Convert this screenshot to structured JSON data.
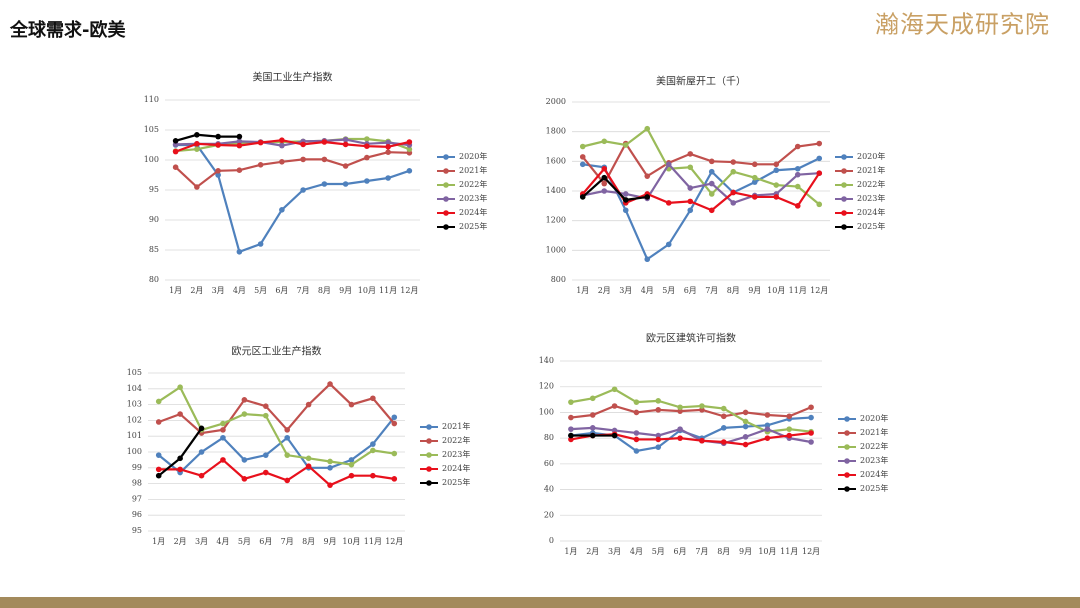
{
  "header": {
    "title": "全球需求-欧美",
    "logo": "瀚海天成研究院"
  },
  "chart_data": [
    {
      "type": "line",
      "title": "美国工业生产指数",
      "categories": [
        "1月",
        "2月",
        "3月",
        "4月",
        "5月",
        "6月",
        "7月",
        "8月",
        "9月",
        "10月",
        "11月",
        "12月"
      ],
      "ylim": [
        80,
        110
      ],
      "yticks": [
        80,
        85,
        90,
        95,
        100,
        105,
        110
      ],
      "grid": true,
      "legend": "right",
      "series": [
        {
          "name": "2020年",
          "color": "#4f81bd",
          "values": [
            102.5,
            102.5,
            97.5,
            84.7,
            86,
            91.7,
            95,
            96,
            96,
            96.5,
            97,
            98.2
          ]
        },
        {
          "name": "2021年",
          "color": "#c0504d",
          "values": [
            98.8,
            95.5,
            98.2,
            98.3,
            99.2,
            99.7,
            100.1,
            100.1,
            99,
            100.4,
            101.3,
            101.2
          ]
        },
        {
          "name": "2022年",
          "color": "#9bbb59",
          "values": [
            101.5,
            101.8,
            102.5,
            102.8,
            103,
            103,
            103.1,
            103.2,
            103.5,
            103.5,
            103.1,
            101.8
          ]
        },
        {
          "name": "2023年",
          "color": "#8064a2",
          "values": [
            102.6,
            102.7,
            102.7,
            103.1,
            103,
            102.4,
            103.1,
            103.2,
            103.4,
            102.7,
            102.9,
            102.5
          ]
        },
        {
          "name": "2024年",
          "color": "#e8101c",
          "values": [
            101.4,
            102.7,
            102.5,
            102.4,
            102.9,
            103.3,
            102.6,
            103,
            102.6,
            102.3,
            102.2,
            103
          ]
        },
        {
          "name": "2025年",
          "color": "#000000",
          "values": [
            103.2,
            104.2,
            103.9,
            103.9,
            null,
            null,
            null,
            null,
            null,
            null,
            null,
            null
          ]
        }
      ]
    },
    {
      "type": "line",
      "title": "美国新屋开工（千）",
      "categories": [
        "1月",
        "2月",
        "3月",
        "4月",
        "5月",
        "6月",
        "7月",
        "8月",
        "9月",
        "10月",
        "11月",
        "12月"
      ],
      "ylim": [
        800,
        2000
      ],
      "yticks": [
        800,
        1000,
        1200,
        1400,
        1600,
        1800,
        2000
      ],
      "grid": true,
      "legend": "right",
      "series": [
        {
          "name": "2020年",
          "color": "#4f81bd",
          "values": [
            1580,
            1560,
            1270,
            940,
            1040,
            1270,
            1530,
            1390,
            1460,
            1540,
            1550,
            1620
          ]
        },
        {
          "name": "2021年",
          "color": "#c0504d",
          "values": [
            1630,
            1450,
            1720,
            1500,
            1590,
            1650,
            1600,
            1595,
            1580,
            1580,
            1700,
            1720
          ]
        },
        {
          "name": "2022年",
          "color": "#9bbb59",
          "values": [
            1700,
            1735,
            1710,
            1820,
            1550,
            1560,
            1380,
            1530,
            1490,
            1440,
            1430,
            1310
          ]
        },
        {
          "name": "2023年",
          "color": "#8064a2",
          "values": [
            1370,
            1400,
            1380,
            1350,
            1580,
            1420,
            1450,
            1320,
            1370,
            1380,
            1510,
            1520
          ]
        },
        {
          "name": "2024年",
          "color": "#e8101c",
          "values": [
            1380,
            1550,
            1320,
            1380,
            1320,
            1330,
            1270,
            1390,
            1360,
            1360,
            1300,
            1520
          ]
        },
        {
          "name": "2025年",
          "color": "#000000",
          "values": [
            1360,
            1490,
            1340,
            1360,
            null,
            null,
            null,
            null,
            null,
            null,
            null,
            null
          ]
        }
      ]
    },
    {
      "type": "line",
      "title": "欧元区工业生产指数",
      "categories": [
        "1月",
        "2月",
        "3月",
        "4月",
        "5月",
        "6月",
        "7月",
        "8月",
        "9月",
        "10月",
        "11月",
        "12月"
      ],
      "ylim": [
        95,
        105
      ],
      "yticks": [
        95,
        96,
        97,
        98,
        99,
        100,
        101,
        102,
        103,
        104,
        105
      ],
      "grid": true,
      "legend": "right",
      "series": [
        {
          "name": "2021年",
          "color": "#4f81bd",
          "values": [
            99.8,
            98.7,
            100,
            100.9,
            99.5,
            99.8,
            100.9,
            99,
            99,
            99.5,
            100.5,
            102.2
          ]
        },
        {
          "name": "2022年",
          "color": "#c0504d",
          "values": [
            101.9,
            102.4,
            101.2,
            101.4,
            103.3,
            102.9,
            101.4,
            103,
            104.3,
            103,
            103.4,
            101.8
          ]
        },
        {
          "name": "2023年",
          "color": "#9bbb59",
          "values": [
            103.2,
            104.1,
            101.4,
            101.8,
            102.4,
            102.3,
            99.8,
            99.6,
            99.4,
            99.2,
            100.1,
            99.9
          ]
        },
        {
          "name": "2024年",
          "color": "#e8101c",
          "values": [
            98.9,
            98.9,
            98.5,
            99.5,
            98.3,
            98.7,
            98.2,
            99.1,
            97.9,
            98.5,
            98.5,
            98.3
          ]
        },
        {
          "name": "2025年",
          "color": "#000000",
          "values": [
            98.5,
            99.6,
            101.5,
            null,
            null,
            null,
            null,
            null,
            null,
            null,
            null,
            null
          ]
        }
      ]
    },
    {
      "type": "line",
      "title": "欧元区建筑许可指数",
      "categories": [
        "1月",
        "2月",
        "3月",
        "4月",
        "5月",
        "6月",
        "7月",
        "8月",
        "9月",
        "10月",
        "11月",
        "12月"
      ],
      "ylim": [
        0,
        140
      ],
      "yticks": [
        0,
        20,
        40,
        60,
        80,
        100,
        120,
        140
      ],
      "grid": true,
      "legend": "right",
      "series": [
        {
          "name": "2020年",
          "color": "#4f81bd",
          "values": [
            82,
            84,
            82,
            70,
            73,
            86,
            80,
            88,
            89,
            90,
            95,
            96
          ]
        },
        {
          "name": "2021年",
          "color": "#c0504d",
          "values": [
            96,
            98,
            105,
            100,
            102,
            101,
            102,
            97,
            100,
            98,
            97,
            104
          ]
        },
        {
          "name": "2022年",
          "color": "#9bbb59",
          "values": [
            108,
            111,
            118,
            108,
            109,
            104,
            105,
            103,
            93,
            85,
            87,
            85
          ]
        },
        {
          "name": "2023年",
          "color": "#8064a2",
          "values": [
            87,
            88,
            86,
            84,
            82,
            87,
            78,
            76,
            81,
            87,
            80,
            77
          ]
        },
        {
          "name": "2024年",
          "color": "#e8101c",
          "values": [
            79,
            82,
            83,
            79,
            79,
            80,
            78,
            77,
            75,
            80,
            82,
            84
          ]
        },
        {
          "name": "2025年",
          "color": "#000000",
          "values": [
            82,
            82,
            82,
            null,
            null,
            null,
            null,
            null,
            null,
            null,
            null,
            null
          ]
        }
      ]
    }
  ]
}
